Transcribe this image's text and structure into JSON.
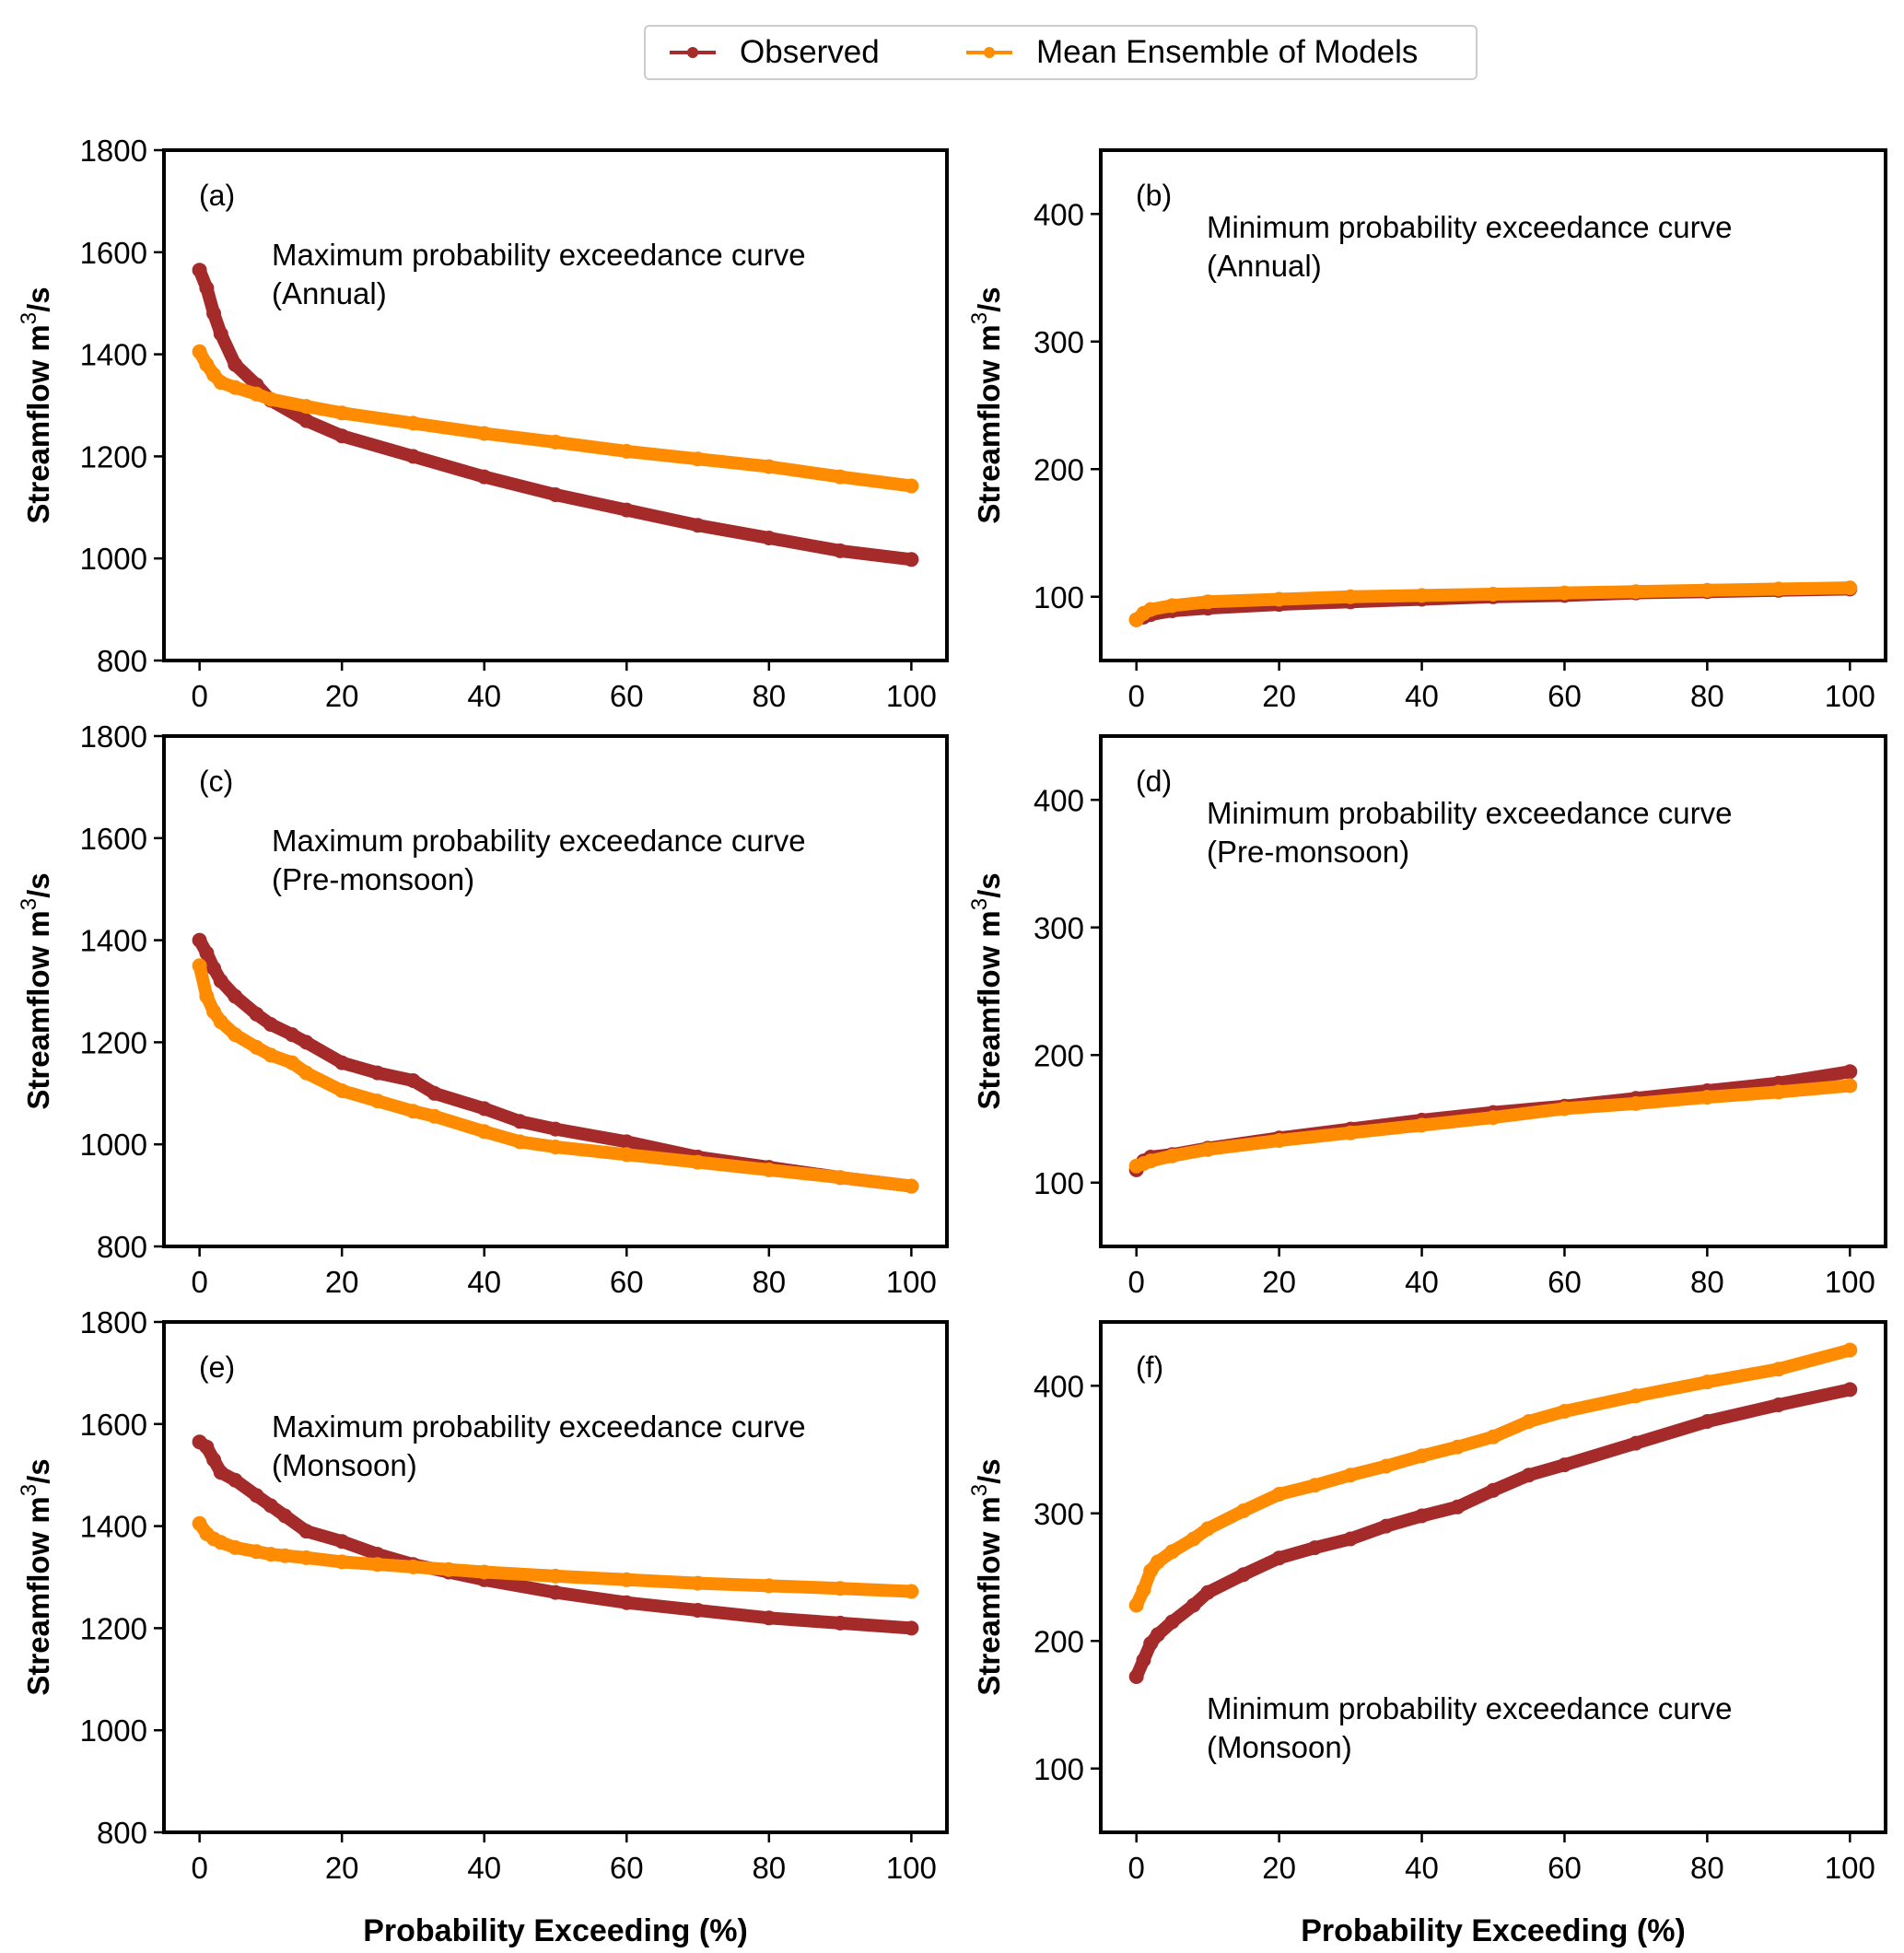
{
  "legend": {
    "items": [
      {
        "label": "Observed",
        "color": "#a52a2a"
      },
      {
        "label": "Mean Ensemble of Models",
        "color": "#ff8c00"
      }
    ]
  },
  "chart_data": [
    {
      "id": "a",
      "type": "line",
      "panel_label": "(a)",
      "annotation": [
        "Maximum probability exceedance curve",
        "(Annual)"
      ],
      "xlabel": "",
      "ylabel": "Streamflow m3/s",
      "xlim": [
        -5,
        105
      ],
      "ylim": [
        800,
        1800
      ],
      "xticks": [
        0,
        20,
        40,
        60,
        80,
        100
      ],
      "yticks": [
        800,
        1000,
        1200,
        1400,
        1600,
        1800
      ],
      "grid": false,
      "x": [
        0,
        1,
        2,
        3,
        5,
        8,
        10,
        15,
        20,
        30,
        40,
        50,
        60,
        70,
        80,
        90,
        100
      ],
      "series": [
        {
          "name": "Observed",
          "values": [
            1565,
            1530,
            1480,
            1440,
            1380,
            1340,
            1310,
            1270,
            1240,
            1200,
            1160,
            1125,
            1095,
            1065,
            1040,
            1015,
            998
          ]
        },
        {
          "name": "Mean Ensemble of Models",
          "values": [
            1405,
            1380,
            1360,
            1345,
            1335,
            1322,
            1312,
            1298,
            1285,
            1265,
            1245,
            1228,
            1210,
            1195,
            1180,
            1160,
            1142
          ]
        }
      ]
    },
    {
      "id": "b",
      "type": "line",
      "panel_label": "(b)",
      "annotation": [
        "Minimum probability exceedance curve",
        "(Annual)"
      ],
      "xlabel": "",
      "ylabel": "Streamflow m3/s",
      "xlim": [
        -5,
        105
      ],
      "ylim": [
        50,
        450
      ],
      "xticks": [
        0,
        20,
        40,
        60,
        80,
        100
      ],
      "yticks": [
        100,
        200,
        300,
        400
      ],
      "grid": false,
      "x": [
        0,
        1,
        2,
        5,
        10,
        20,
        30,
        40,
        50,
        60,
        70,
        80,
        90,
        100
      ],
      "series": [
        {
          "name": "Observed",
          "values": [
            82,
            84,
            86,
            89,
            91,
            94,
            96,
            98,
            100,
            101,
            103,
            104,
            105,
            106
          ]
        },
        {
          "name": "Mean Ensemble of Models",
          "values": [
            82,
            87,
            90,
            93,
            96,
            98,
            100,
            101,
            102,
            103,
            104,
            105,
            106,
            107
          ]
        }
      ]
    },
    {
      "id": "c",
      "type": "line",
      "panel_label": "(c)",
      "annotation": [
        "Maximum probability exceedance curve",
        "(Pre-monsoon)"
      ],
      "xlabel": "",
      "ylabel": "Streamflow m3/s",
      "xlim": [
        -5,
        105
      ],
      "ylim": [
        800,
        1800
      ],
      "xticks": [
        0,
        20,
        40,
        60,
        80,
        100
      ],
      "yticks": [
        800,
        1000,
        1200,
        1400,
        1600,
        1800
      ],
      "grid": false,
      "x": [
        0,
        1,
        2,
        3,
        5,
        8,
        10,
        13,
        15,
        20,
        25,
        30,
        33,
        40,
        45,
        50,
        60,
        70,
        80,
        90,
        100
      ],
      "series": [
        {
          "name": "Observed",
          "values": [
            1400,
            1375,
            1345,
            1320,
            1290,
            1255,
            1235,
            1215,
            1200,
            1160,
            1140,
            1125,
            1100,
            1070,
            1045,
            1030,
            1005,
            975,
            955,
            935,
            918
          ]
        },
        {
          "name": "Mean Ensemble of Models",
          "values": [
            1350,
            1290,
            1260,
            1240,
            1215,
            1190,
            1175,
            1160,
            1140,
            1105,
            1085,
            1065,
            1055,
            1025,
            1005,
            995,
            980,
            965,
            950,
            935,
            918
          ]
        }
      ]
    },
    {
      "id": "d",
      "type": "line",
      "panel_label": "(d)",
      "annotation": [
        "Minimum probability exceedance curve",
        "(Pre-monsoon)"
      ],
      "xlabel": "",
      "ylabel": "Streamflow m3/s",
      "xlim": [
        -5,
        105
      ],
      "ylim": [
        50,
        450
      ],
      "xticks": [
        0,
        20,
        40,
        60,
        80,
        100
      ],
      "yticks": [
        100,
        200,
        300,
        400
      ],
      "grid": false,
      "x": [
        0,
        1,
        2,
        5,
        10,
        20,
        30,
        40,
        50,
        60,
        70,
        80,
        90,
        100
      ],
      "series": [
        {
          "name": "Observed",
          "values": [
            110,
            117,
            120,
            122,
            127,
            135,
            142,
            149,
            155,
            160,
            166,
            172,
            178,
            187
          ]
        },
        {
          "name": "Mean Ensemble of Models",
          "values": [
            113,
            115,
            117,
            121,
            126,
            133,
            139,
            145,
            151,
            158,
            162,
            167,
            171,
            176
          ]
        }
      ]
    },
    {
      "id": "e",
      "type": "line",
      "panel_label": "(e)",
      "annotation": [
        "Maximum probability exceedance curve",
        "(Monsoon)"
      ],
      "xlabel": "Probability Exceeding (%)",
      "ylabel": "Streamflow m3/s",
      "xlim": [
        -5,
        105
      ],
      "ylim": [
        800,
        1800
      ],
      "xticks": [
        0,
        20,
        40,
        60,
        80,
        100
      ],
      "yticks": [
        800,
        1000,
        1200,
        1400,
        1600,
        1800
      ],
      "grid": false,
      "x": [
        0,
        1,
        2,
        3,
        5,
        8,
        10,
        12,
        15,
        20,
        25,
        30,
        35,
        40,
        50,
        60,
        70,
        80,
        90,
        100
      ],
      "series": [
        {
          "name": "Observed",
          "values": [
            1565,
            1555,
            1530,
            1505,
            1490,
            1460,
            1440,
            1420,
            1390,
            1370,
            1345,
            1325,
            1310,
            1295,
            1270,
            1250,
            1235,
            1220,
            1210,
            1200
          ]
        },
        {
          "name": "Mean Ensemble of Models",
          "values": [
            1405,
            1385,
            1375,
            1368,
            1358,
            1350,
            1345,
            1342,
            1338,
            1330,
            1325,
            1320,
            1315,
            1310,
            1302,
            1295,
            1288,
            1283,
            1278,
            1272
          ]
        }
      ]
    },
    {
      "id": "f",
      "type": "line",
      "panel_label": "(f)",
      "annotation": [
        "Minimum probability exceedance curve",
        "(Monsoon)"
      ],
      "xlabel": "Probability Exceeding (%)",
      "ylabel": "Streamflow m3/s",
      "xlim": [
        -5,
        105
      ],
      "ylim": [
        50,
        450
      ],
      "xticks": [
        0,
        20,
        40,
        60,
        80,
        100
      ],
      "yticks": [
        100,
        200,
        300,
        400
      ],
      "grid": false,
      "x": [
        0,
        1,
        2,
        3,
        5,
        8,
        10,
        15,
        20,
        25,
        30,
        35,
        40,
        45,
        50,
        55,
        60,
        70,
        80,
        90,
        100
      ],
      "series": [
        {
          "name": "Observed",
          "values": [
            172,
            185,
            198,
            205,
            215,
            228,
            238,
            252,
            265,
            273,
            280,
            290,
            298,
            305,
            318,
            330,
            338,
            355,
            372,
            385,
            397
          ]
        },
        {
          "name": "Mean Ensemble of Models",
          "values": [
            228,
            240,
            255,
            262,
            270,
            280,
            288,
            302,
            315,
            322,
            330,
            337,
            345,
            352,
            360,
            372,
            380,
            392,
            403,
            413,
            428
          ]
        }
      ]
    }
  ]
}
